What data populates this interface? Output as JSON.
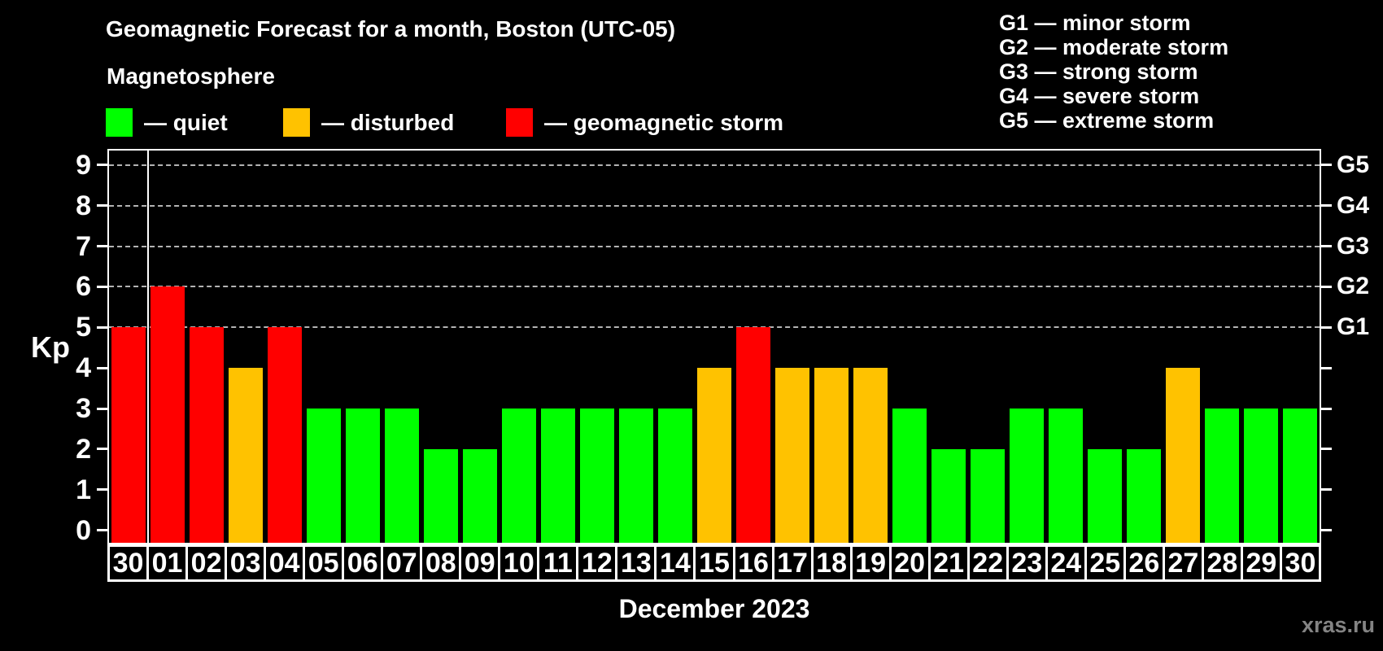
{
  "header": {
    "title": "Geomagnetic Forecast for a month, Boston (UTC-05)",
    "subtitle": "Magnetosphere"
  },
  "legend": {
    "items": [
      {
        "label": "— quiet",
        "status": "quiet",
        "color": "#00ff00"
      },
      {
        "label": "— disturbed",
        "status": "disturbed",
        "color": "#ffc200"
      },
      {
        "label": "— geomagnetic storm",
        "status": "storm",
        "color": "#ff0000"
      }
    ]
  },
  "g_legend": {
    "items": [
      "G1 — minor storm",
      "G2 — moderate storm",
      "G3 — strong storm",
      "G4 — severe storm",
      "G5 — extreme storm"
    ]
  },
  "watermark": "xras.ru",
  "chart_data": {
    "type": "bar",
    "title": "Geomagnetic Forecast for a month, Boston (UTC-05)",
    "xlabel": "December 2023",
    "ylabel": "Kp",
    "ylim": [
      -0.35,
      9.4
    ],
    "yticks": [
      0,
      1,
      2,
      3,
      4,
      5,
      6,
      7,
      8,
      9
    ],
    "gridlines_at": [
      5,
      6,
      7,
      8,
      9
    ],
    "right_axis_labels": [
      {
        "kp": 5,
        "text": "G1"
      },
      {
        "kp": 6,
        "text": "G2"
      },
      {
        "kp": 7,
        "text": "G3"
      },
      {
        "kp": 8,
        "text": "G4"
      },
      {
        "kp": 9,
        "text": "G5"
      }
    ],
    "categories": [
      "30",
      "01",
      "02",
      "03",
      "04",
      "05",
      "06",
      "07",
      "08",
      "09",
      "10",
      "11",
      "12",
      "13",
      "14",
      "15",
      "16",
      "17",
      "18",
      "19",
      "20",
      "21",
      "22",
      "23",
      "24",
      "25",
      "26",
      "27",
      "28",
      "29",
      "30"
    ],
    "values": [
      5,
      6,
      5,
      4,
      5,
      3,
      3,
      3,
      2,
      2,
      3,
      3,
      3,
      3,
      3,
      4,
      5,
      4,
      4,
      4,
      3,
      2,
      2,
      3,
      3,
      2,
      2,
      4,
      3,
      3,
      3
    ],
    "statuses": [
      "storm",
      "storm",
      "storm",
      "disturbed",
      "storm",
      "quiet",
      "quiet",
      "quiet",
      "quiet",
      "quiet",
      "quiet",
      "quiet",
      "quiet",
      "quiet",
      "quiet",
      "disturbed",
      "storm",
      "disturbed",
      "disturbed",
      "disturbed",
      "quiet",
      "quiet",
      "quiet",
      "quiet",
      "quiet",
      "quiet",
      "quiet",
      "disturbed",
      "quiet",
      "quiet",
      "quiet"
    ],
    "colors": {
      "quiet": "#00ff00",
      "disturbed": "#ffc200",
      "storm": "#ff0000"
    },
    "month_separator_after_index": 0,
    "grid": "horizontal dashed lines at G-storm levels only",
    "legend_position": "top-left and top-right"
  }
}
